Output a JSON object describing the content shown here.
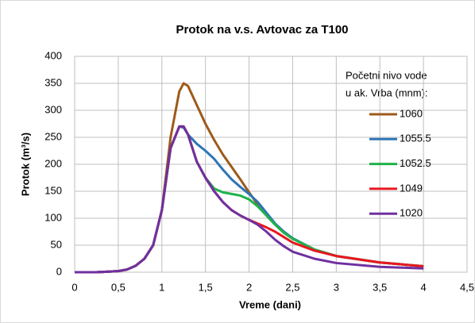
{
  "chart_data": {
    "type": "line",
    "title": "Protok na v.s. Avtovac za T100",
    "x_label": "Vreme (dani)",
    "y_label": "Protok (m³/s)",
    "legend_title": [
      "Početni nivo vode",
      "u ak. Vrba (mnm):"
    ],
    "x": [
      0,
      0.25,
      0.5,
      0.6,
      0.7,
      0.8,
      0.9,
      1.0,
      1.1,
      1.2,
      1.25,
      1.3,
      1.4,
      1.5,
      1.6,
      1.7,
      1.8,
      1.9,
      2.0,
      2.1,
      2.2,
      2.3,
      2.4,
      2.5,
      2.75,
      3,
      3.5,
      4
    ],
    "series": [
      {
        "name": "1060",
        "color": "#9e5a1a",
        "values": [
          0,
          0,
          2,
          5,
          12,
          25,
          50,
          115,
          250,
          335,
          350,
          345,
          310,
          275,
          245,
          218,
          195,
          172,
          148,
          125,
          105,
          88,
          73,
          62,
          42,
          30,
          18,
          11
        ]
      },
      {
        "name": "1055.5",
        "color": "#2e75b6",
        "values": [
          0,
          0,
          2,
          5,
          12,
          25,
          50,
          115,
          230,
          270,
          268,
          255,
          238,
          225,
          210,
          190,
          172,
          158,
          145,
          130,
          110,
          90,
          75,
          63,
          42,
          30,
          18,
          11
        ]
      },
      {
        "name": "1052.5",
        "color": "#1fb24a",
        "values": [
          0,
          0,
          2,
          5,
          12,
          25,
          50,
          115,
          230,
          270,
          270,
          255,
          205,
          175,
          155,
          148,
          145,
          142,
          135,
          122,
          105,
          88,
          73,
          62,
          42,
          30,
          18,
          11
        ]
      },
      {
        "name": "1049",
        "color": "#e8171f",
        "values": [
          0,
          0,
          2,
          5,
          12,
          25,
          50,
          115,
          230,
          270,
          270,
          255,
          205,
          175,
          150,
          130,
          115,
          105,
          97,
          90,
          83,
          75,
          65,
          55,
          40,
          30,
          18,
          11
        ]
      },
      {
        "name": "1020",
        "color": "#7030a0",
        "values": [
          0,
          0,
          2,
          5,
          12,
          25,
          50,
          115,
          230,
          270,
          270,
          255,
          205,
          175,
          150,
          130,
          115,
          105,
          97,
          88,
          75,
          60,
          48,
          38,
          25,
          17,
          10,
          7
        ]
      }
    ],
    "xlim": [
      0,
      4.5
    ],
    "xticks": [
      0,
      {
        "value": 0.5,
        "label": "0,5"
      },
      1,
      {
        "value": 1.5,
        "label": "1,5"
      },
      2,
      {
        "value": 2.5,
        "label": "2,5"
      },
      3,
      {
        "value": 3.5,
        "label": "3,5"
      },
      4,
      {
        "value": 4.5,
        "label": "4,5"
      }
    ],
    "ylim": [
      0,
      400
    ],
    "yticks": [
      0,
      50,
      100,
      150,
      200,
      250,
      300,
      350,
      400
    ],
    "grid": true
  }
}
